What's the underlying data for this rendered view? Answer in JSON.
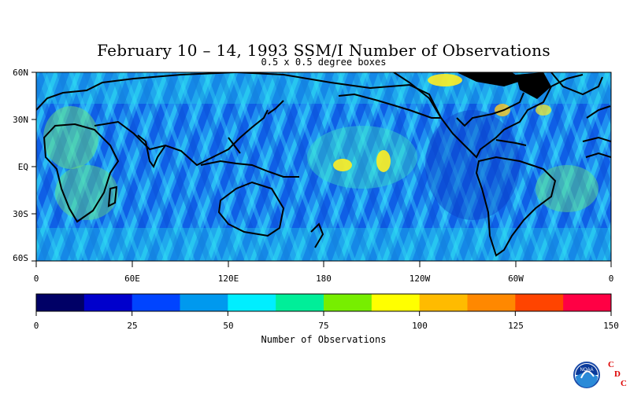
{
  "title": "February 10 – 14, 1993 SSM/I Number of Observations",
  "subtitle": "0.5 x 0.5 degree boxes",
  "lat_labels": [
    "60N",
    "30N",
    "EQ",
    "30S",
    "60S"
  ],
  "lon_labels": [
    "0",
    "60E",
    "120E",
    "180",
    "120W",
    "60W",
    "0"
  ],
  "colorbar": {
    "label": "Number of Observations",
    "ticks": [
      "0",
      "25",
      "50",
      "75",
      "100",
      "125",
      "150"
    ],
    "colors": [
      "#000066",
      "#0000cc",
      "#0044ff",
      "#0099ee",
      "#00eeff",
      "#00ee99",
      "#77ee00",
      "#ffff00",
      "#ffbb00",
      "#ff8800",
      "#ff4400",
      "#ff0044"
    ]
  },
  "logo": {
    "noaa": "NOAA",
    "c1": "C",
    "d": "D",
    "c2": "C"
  }
}
